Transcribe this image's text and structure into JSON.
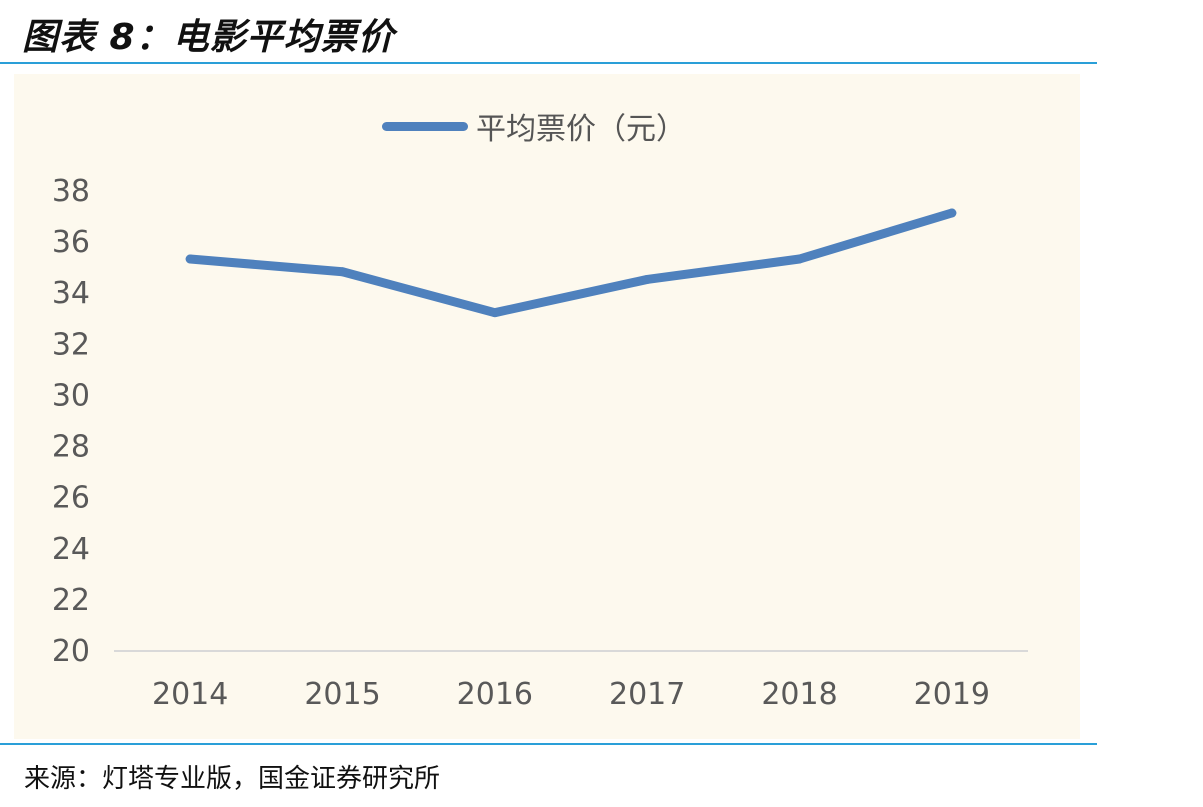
{
  "figure": {
    "title": "图表 8：电影平均票价",
    "source": "来源：灯塔专业版，国金证券研究所"
  },
  "colors": {
    "line": "#4f81bd",
    "rule": "#2a9fd8",
    "plot_background": "#fdf9ee",
    "axis_text": "#595959",
    "baseline": "#d9d9d9"
  },
  "chart_data": {
    "type": "line",
    "title": "",
    "xlabel": "",
    "ylabel": "",
    "categories": [
      "2014",
      "2015",
      "2016",
      "2017",
      "2018",
      "2019"
    ],
    "series": [
      {
        "name": "平均票价（元）",
        "values": [
          35.3,
          34.8,
          33.2,
          34.5,
          35.3,
          37.1
        ]
      }
    ],
    "ylim": [
      20,
      38
    ],
    "yticks": [
      "20",
      "22",
      "24",
      "26",
      "28",
      "30",
      "32",
      "34",
      "36",
      "38"
    ],
    "grid": false,
    "legend_position": "top-center"
  }
}
